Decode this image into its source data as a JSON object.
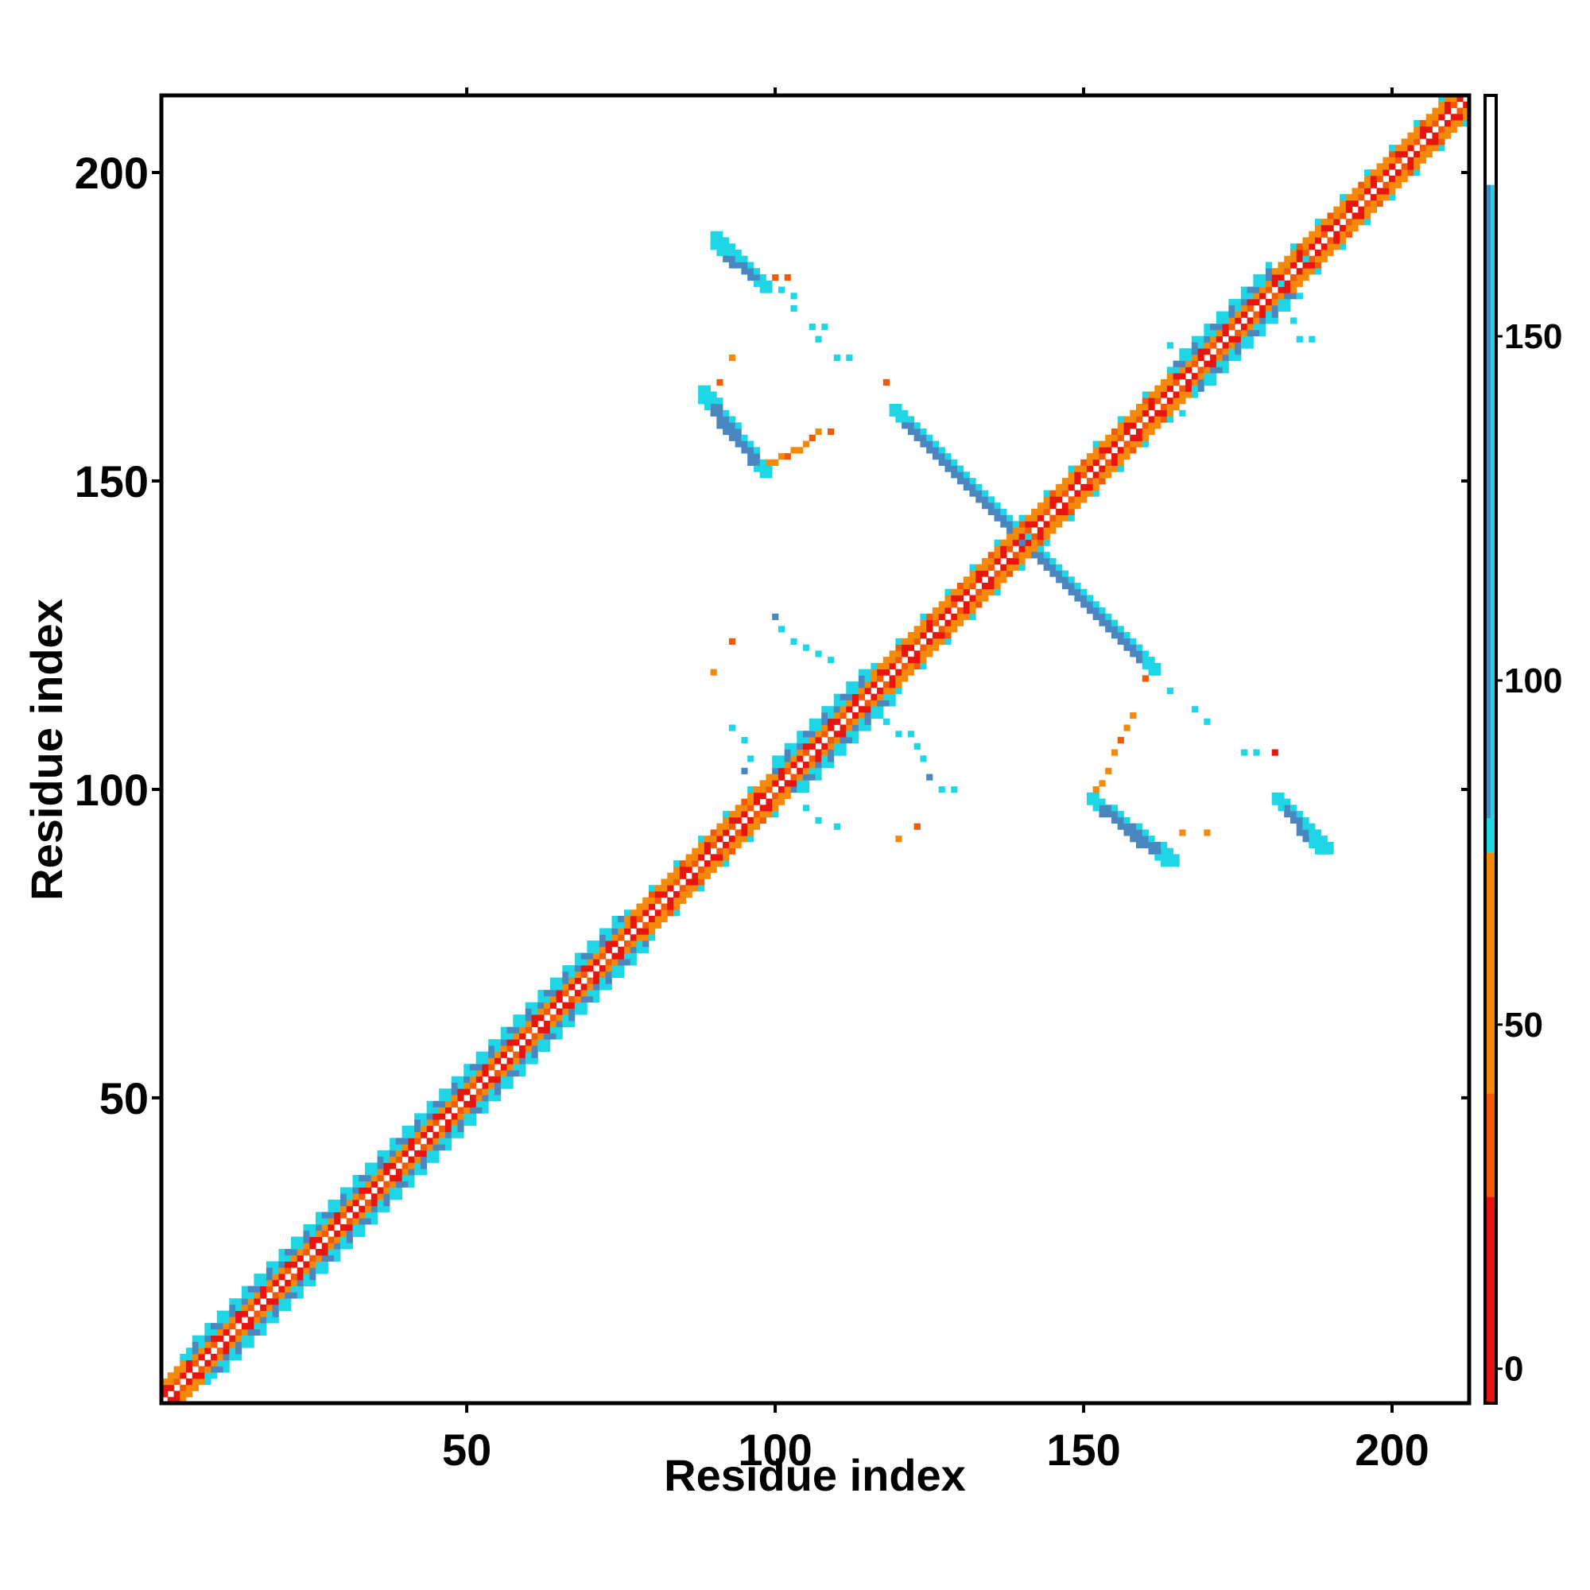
{
  "chart_data": {
    "type": "heatmap",
    "title": "",
    "xlabel": "Residue index",
    "ylabel": "Residue index",
    "xlim": [
      1,
      212
    ],
    "ylim": [
      1,
      212
    ],
    "x_ticks": [
      50,
      100,
      150,
      200
    ],
    "y_ticks": [
      50,
      100,
      150,
      200
    ],
    "x_tick_labels": [
      "50",
      "100",
      "150",
      "200"
    ],
    "y_tick_labels": [
      "50",
      "100",
      "150",
      "200"
    ],
    "colorbar": {
      "range": [
        -5,
        185
      ],
      "ticks": [
        0,
        50,
        100,
        150
      ],
      "tick_labels": [
        "0",
        "50",
        "100",
        "150"
      ],
      "bands": [
        {
          "from": -5,
          "to": 25,
          "color": "#e8140e"
        },
        {
          "from": 25,
          "to": 40,
          "color": "#f25a08"
        },
        {
          "from": 40,
          "to": 75,
          "color": "#f58a0a"
        },
        {
          "from": 75,
          "to": 172,
          "color": "#1fd6e6"
        },
        {
          "from": 172,
          "to": 185,
          "color": "#ffffff"
        }
      ],
      "upper_bands": [
        {
          "from": 80,
          "to": 172,
          "color": "#3f8fc4"
        }
      ]
    },
    "colors": {
      "red": "#e8140e",
      "red_orange": "#f25a08",
      "orange": "#f58a0a",
      "cyan": "#1fd6e6",
      "steel_blue": "#4a86c0"
    },
    "features": [
      {
        "kind": "diagonal",
        "from": 1,
        "to": 212,
        "description_colors": [
          "red",
          "red_orange",
          "orange",
          "cyan"
        ]
      },
      {
        "kind": "helix_band",
        "x_from": 5,
        "x_to": 75
      },
      {
        "kind": "helix_band",
        "x_from": 100,
        "x_to": 115
      },
      {
        "kind": "helix_band",
        "x_from": 165,
        "x_to": 180
      },
      {
        "kind": "antiparallel_strip",
        "points": [
          [
            119,
            161
          ],
          [
            160,
            120
          ]
        ],
        "color": "steel_blue"
      },
      {
        "kind": "antiparallel_strip",
        "points": [
          [
            90,
            188
          ],
          [
            98,
            181
          ]
        ],
        "color": "steel_blue"
      },
      {
        "kind": "antiparallel_strip",
        "points": [
          [
            88,
            164
          ],
          [
            98,
            151
          ]
        ],
        "color": "steel_blue"
      },
      {
        "kind": "antiparallel_strip",
        "points": [
          [
            151,
            98
          ],
          [
            163,
            88
          ]
        ],
        "color": "steel_blue"
      },
      {
        "kind": "antiparallel_strip",
        "points": [
          [
            181,
            98
          ],
          [
            189,
            90
          ]
        ],
        "color": "steel_blue"
      }
    ]
  }
}
